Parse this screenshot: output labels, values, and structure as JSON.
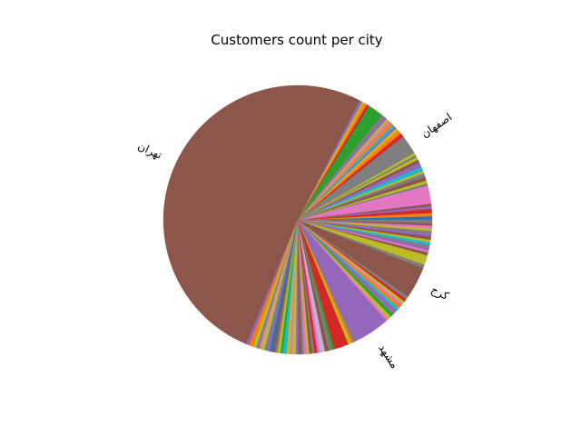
{
  "chart_data": {
    "type": "pie",
    "title": "Customers count per city",
    "start_angle_deg": 0,
    "direction": "counterclockwise",
    "slices": [
      {
        "label": "",
        "value": 0.45,
        "color": "#1f77b4"
      },
      {
        "label": "",
        "value": 0.4,
        "color": "#ff7f0e"
      },
      {
        "label": "",
        "value": 0.5,
        "color": "#d62728"
      },
      {
        "label": "",
        "value": 0.35,
        "color": "#9467bd"
      },
      {
        "label": "",
        "value": 0.3,
        "color": "#8c564b"
      },
      {
        "label": "",
        "value": 0.45,
        "color": "#e377c2"
      },
      {
        "label": "",
        "value": 1.8,
        "color": "#e377c2"
      },
      {
        "label": "",
        "value": 0.3,
        "color": "#7f7f7f"
      },
      {
        "label": "",
        "value": 0.35,
        "color": "#bcbd22"
      },
      {
        "label": "",
        "value": 0.5,
        "color": "#8c564b"
      },
      {
        "label": "",
        "value": 0.45,
        "color": "#7f7f7f"
      },
      {
        "label": "",
        "value": 0.3,
        "color": "#bcbd22"
      },
      {
        "label": "",
        "value": 0.5,
        "color": "#17becf"
      },
      {
        "label": "",
        "value": 0.6,
        "color": "#9467bd"
      },
      {
        "label": "",
        "value": 0.4,
        "color": "#8c564b"
      },
      {
        "label": "",
        "value": 0.35,
        "color": "#bcbd22"
      },
      {
        "label": "",
        "value": 0.3,
        "color": "#7f7f7f"
      },
      {
        "label": "",
        "value": 0.3,
        "color": "#bcbd22"
      },
      {
        "label": "اصفهان",
        "value": 2.4,
        "color": "#7f7f7f"
      },
      {
        "label": "",
        "value": 0.5,
        "color": "#d62728"
      },
      {
        "label": "",
        "value": 0.5,
        "color": "#ff7f0e"
      },
      {
        "label": "",
        "value": 0.35,
        "color": "#bcbd22"
      },
      {
        "label": "",
        "value": 0.3,
        "color": "#9467bd"
      },
      {
        "label": "",
        "value": 0.3,
        "color": "#17becf"
      },
      {
        "label": "",
        "value": 0.4,
        "color": "#ff7f0e"
      },
      {
        "label": "",
        "value": 0.35,
        "color": "#e377c2"
      },
      {
        "label": "",
        "value": 0.3,
        "color": "#bcbd22"
      },
      {
        "label": "",
        "value": 0.35,
        "color": "#9467bd"
      },
      {
        "label": "",
        "value": 0.4,
        "color": "#7f7f7f"
      },
      {
        "label": "",
        "value": 0.3,
        "color": "#2ca02c"
      },
      {
        "label": "",
        "value": 1.6,
        "color": "#2ca02c"
      },
      {
        "label": "",
        "value": 0.35,
        "color": "#d62728"
      },
      {
        "label": "",
        "value": 0.35,
        "color": "#ff7f0e"
      },
      {
        "label": "",
        "value": 0.3,
        "color": "#bcbd22"
      },
      {
        "label": "",
        "value": 0.35,
        "color": "#9467bd"
      },
      {
        "label": "تهران",
        "value": 53.2,
        "color": "#8c564b"
      },
      {
        "label": "",
        "value": 0.4,
        "color": "#9467bd"
      },
      {
        "label": "",
        "value": 0.5,
        "color": "#ff7f0e"
      },
      {
        "label": "",
        "value": 0.4,
        "color": "#bcbd22"
      },
      {
        "label": "",
        "value": 0.35,
        "color": "#7f7f7f"
      },
      {
        "label": "",
        "value": 0.3,
        "color": "#e377c2"
      },
      {
        "label": "",
        "value": 0.4,
        "color": "#bcbd22"
      },
      {
        "label": "",
        "value": 0.35,
        "color": "#7f7f7f"
      },
      {
        "label": "",
        "value": 0.3,
        "color": "#9467bd"
      },
      {
        "label": "",
        "value": 0.35,
        "color": "#1f77b4"
      },
      {
        "label": "",
        "value": 0.35,
        "color": "#8c564b"
      },
      {
        "label": "",
        "value": 0.3,
        "color": "#7f7f7f"
      },
      {
        "label": "",
        "value": 0.35,
        "color": "#bcbd22"
      },
      {
        "label": "",
        "value": 0.3,
        "color": "#2ca02c"
      },
      {
        "label": "",
        "value": 0.45,
        "color": "#17becf"
      },
      {
        "label": "",
        "value": 0.4,
        "color": "#bcbd22"
      },
      {
        "label": "",
        "value": 0.3,
        "color": "#e377c2"
      },
      {
        "label": "",
        "value": 0.45,
        "color": "#bcbd22"
      },
      {
        "label": "",
        "value": 0.35,
        "color": "#9467bd"
      },
      {
        "label": "",
        "value": 0.35,
        "color": "#8c564b"
      },
      {
        "label": "",
        "value": 0.3,
        "color": "#7f7f7f"
      },
      {
        "label": "",
        "value": 0.35,
        "color": "#e377c2"
      },
      {
        "label": "",
        "value": 0.3,
        "color": "#bcbd22"
      },
      {
        "label": "",
        "value": 0.35,
        "color": "#8c564b"
      },
      {
        "label": "",
        "value": 0.3,
        "color": "#7f7f7f"
      },
      {
        "label": "",
        "value": 0.35,
        "color": "#d62728"
      },
      {
        "label": "",
        "value": 0.35,
        "color": "#e377c2"
      },
      {
        "label": "",
        "value": 0.6,
        "color": "#c5b0d5"
      },
      {
        "label": "",
        "value": 0.5,
        "color": "#8c564b"
      },
      {
        "label": "",
        "value": 0.35,
        "color": "#7f7f7f"
      },
      {
        "label": "",
        "value": 0.35,
        "color": "#2ca02c"
      },
      {
        "label": "",
        "value": 1.8,
        "color": "#d62728"
      },
      {
        "label": "",
        "value": 0.35,
        "color": "#bcbd22"
      },
      {
        "label": "",
        "value": 0.3,
        "color": "#ff7f0e"
      },
      {
        "label": "",
        "value": 0.35,
        "color": "#7f7f7f"
      },
      {
        "label": "مشهد",
        "value": 4.5,
        "color": "#9467bd"
      },
      {
        "label": "",
        "value": 0.35,
        "color": "#e377c2"
      },
      {
        "label": "",
        "value": 0.4,
        "color": "#bcbd22"
      },
      {
        "label": "",
        "value": 0.35,
        "color": "#2ca02c"
      },
      {
        "label": "",
        "value": 0.35,
        "color": "#7f7f7f"
      },
      {
        "label": "",
        "value": 0.4,
        "color": "#9467bd"
      },
      {
        "label": "",
        "value": 0.35,
        "color": "#17becf"
      },
      {
        "label": "",
        "value": 0.4,
        "color": "#ff7f0e"
      },
      {
        "label": "",
        "value": 0.3,
        "color": "#e377c2"
      },
      {
        "label": "",
        "value": 0.35,
        "color": "#bcbd22"
      },
      {
        "label": "",
        "value": 0.35,
        "color": "#d62728"
      },
      {
        "label": "",
        "value": 0.4,
        "color": "#7f7f7f"
      },
      {
        "label": "",
        "value": 0.35,
        "color": "#8c564b"
      },
      {
        "label": "کرج",
        "value": 3.6,
        "color": "#8c564b"
      },
      {
        "label": "",
        "value": 0.45,
        "color": "#7f7f7f"
      },
      {
        "label": "",
        "value": 1.2,
        "color": "#bcbd22"
      },
      {
        "label": "",
        "value": 0.35,
        "color": "#8c564b"
      },
      {
        "label": "",
        "value": 0.3,
        "color": "#e377c2"
      },
      {
        "label": "",
        "value": 0.35,
        "color": "#9467bd"
      },
      {
        "label": "",
        "value": 0.3,
        "color": "#7f7f7f"
      },
      {
        "label": "",
        "value": 0.35,
        "color": "#17becf"
      },
      {
        "label": "",
        "value": 0.3,
        "color": "#bcbd22"
      },
      {
        "label": "",
        "value": 0.4,
        "color": "#8c564b"
      },
      {
        "label": "",
        "value": 0.35,
        "color": "#9467bd"
      },
      {
        "label": "",
        "value": 0.35,
        "color": "#7f7f7f"
      },
      {
        "label": "",
        "value": 0.3,
        "color": "#bcbd22"
      },
      {
        "label": "",
        "value": 0.35,
        "color": "#e377c2"
      },
      {
        "label": "",
        "value": 0.3,
        "color": "#8c564b"
      },
      {
        "label": "",
        "value": 0.4,
        "color": "#7f7f7f"
      }
    ]
  }
}
